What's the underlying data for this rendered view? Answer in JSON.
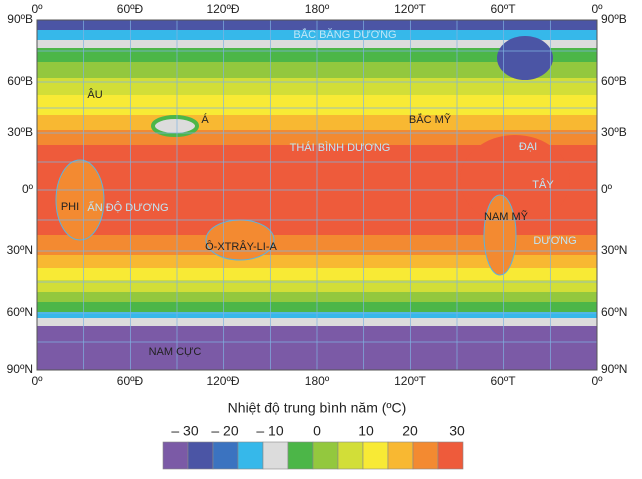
{
  "map": {
    "top_labels": [
      "0º",
      "60ºĐ",
      "120ºĐ",
      "180º",
      "120ºT",
      "60ºT",
      "0º"
    ],
    "bottom_labels": [
      "0º",
      "60ºĐ",
      "120ºĐ",
      "180º",
      "120ºT",
      "60ºT",
      "0º"
    ],
    "left_labels": [
      "90ºB",
      "60ºB",
      "30ºB",
      "0º",
      "30ºN",
      "60ºN",
      "90ºN"
    ],
    "right_labels": [
      "90ºB",
      "60ºB",
      "30ºB",
      "0º",
      "30ºN",
      "60ºN",
      "90ºN"
    ],
    "place_labels": [
      "BẮC BĂNG DƯƠNG",
      "ÂU",
      "Á",
      "BẮC MỸ",
      "THÁI BÌNH DƯƠNG",
      "ĐẠI",
      "TÂY",
      "DƯƠNG",
      "PHI",
      "ẤN ĐỘ DƯƠNG",
      "NAM MỸ",
      "Ô-XTRÂY-LI-A",
      "NAM CỰC"
    ]
  },
  "legend": {
    "title": "Nhiệt độ trung bình năm (ºC)",
    "ticks": [
      "– 30",
      "– 20",
      "– 10",
      "0",
      "10",
      "20",
      "30"
    ],
    "colors": [
      "#7b5aa6",
      "#4b55a5",
      "#3b73c0",
      "#36b8ea",
      "#dcdcdc",
      "#4cb648",
      "#93c83e",
      "#d2de38",
      "#f8ea35",
      "#f8b832",
      "#f38a31",
      "#ee5b3b"
    ]
  }
}
